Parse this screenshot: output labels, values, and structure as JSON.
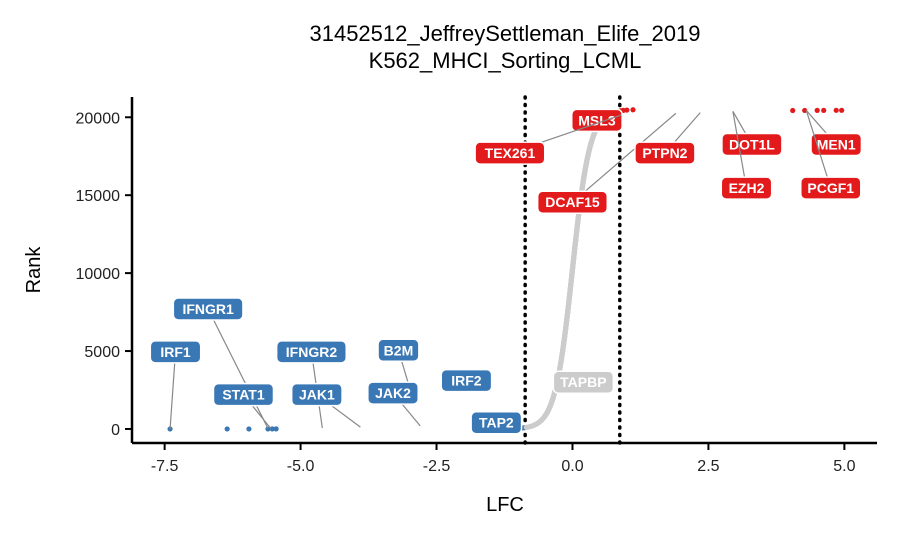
{
  "chart_data": {
    "type": "scatter",
    "title": "31452512_JeffreySettleman_Elife_2019",
    "subtitle": "K562_MHCI_Sorting_LCML",
    "xlabel": "LFC",
    "ylabel": "Rank",
    "xlim": [
      -8.1,
      5.6
    ],
    "ylim": [
      -900,
      21300
    ],
    "xticks": [
      -7.5,
      -5.0,
      -2.5,
      0.0,
      2.5,
      5.0
    ],
    "xtick_labels": [
      "-7.5",
      "-5.0",
      "-2.5",
      "0.0",
      "2.5",
      "5.0"
    ],
    "yticks": [
      0,
      5000,
      10000,
      15000,
      20000
    ],
    "ytick_labels": [
      "0",
      "5000",
      "10000",
      "15000",
      "20000"
    ],
    "thresholds": [
      -0.87,
      0.87
    ],
    "grid": false,
    "legend": "none",
    "colors": {
      "down": "#3a78b5",
      "up": "#e31a1c",
      "neutral": "#cccccc"
    },
    "n_genes": 20500,
    "sigmoid": {
      "center": 0,
      "scale": 0.16
    },
    "outliers_low": [
      {
        "x": -7.4,
        "y": 0
      },
      {
        "x": -6.35,
        "y": 1
      },
      {
        "x": -5.95,
        "y": 2
      },
      {
        "x": -5.6,
        "y": 3
      },
      {
        "x": -5.52,
        "y": 4
      },
      {
        "x": -5.45,
        "y": 5
      }
    ],
    "outliers_high": [
      {
        "x": 4.5,
        "y": 20440
      },
      {
        "x": 4.62,
        "y": 20442
      },
      {
        "x": 4.85,
        "y": 20445
      },
      {
        "x": 4.95,
        "y": 20447
      },
      {
        "x": 4.27,
        "y": 20437
      },
      {
        "x": 4.05,
        "y": 20434
      }
    ],
    "labels": [
      {
        "text": "IRF1",
        "group": "down",
        "point": [
          -7.4,
          0
        ],
        "pos": [
          -7.3,
          4950
        ]
      },
      {
        "text": "IFNGR1",
        "group": "down",
        "point": [
          -5.6,
          30
        ],
        "pos": [
          -6.7,
          7700
        ]
      },
      {
        "text": "STAT1",
        "group": "down",
        "point": [
          -5.55,
          35
        ],
        "pos": [
          -6.05,
          2200
        ]
      },
      {
        "text": "IFNGR2",
        "group": "down",
        "point": [
          -4.6,
          60
        ],
        "pos": [
          -4.8,
          4950
        ]
      },
      {
        "text": "JAK1",
        "group": "down",
        "point": [
          -3.9,
          120
        ],
        "pos": [
          -4.7,
          2200
        ]
      },
      {
        "text": "B2M",
        "group": "down",
        "point": [
          -3.0,
          2700
        ],
        "pos": [
          -3.2,
          5050
        ]
      },
      {
        "text": "JAK2",
        "group": "down",
        "point": [
          -2.8,
          200
        ],
        "pos": [
          -3.3,
          2300
        ]
      },
      {
        "text": "IRF2",
        "group": "down",
        "point": [
          -2.0,
          3100
        ],
        "pos": [
          -1.95,
          3100
        ]
      },
      {
        "text": "TAP2",
        "group": "down",
        "point": [
          -1.0,
          500
        ],
        "pos": [
          -1.4,
          400
        ]
      },
      {
        "text": "TAPBP",
        "group": "neutral",
        "point": [
          0.2,
          3000
        ],
        "pos": [
          0.2,
          3000
        ]
      },
      {
        "text": "MSL3",
        "group": "up",
        "point": [
          0.9,
          20200
        ],
        "pos": [
          0.45,
          19800
        ]
      },
      {
        "text": "TEX261",
        "group": "up",
        "point": [
          0.9,
          20150
        ],
        "pos": [
          -1.15,
          17700
        ]
      },
      {
        "text": "DCAF15",
        "group": "up",
        "point": [
          1.9,
          20250
        ],
        "pos": [
          0.0,
          14550
        ]
      },
      {
        "text": "PTPN2",
        "group": "up",
        "point": [
          2.35,
          20300
        ],
        "pos": [
          1.7,
          17700
        ]
      },
      {
        "text": "DOT1L",
        "group": "up",
        "point": [
          2.95,
          20380
        ],
        "pos": [
          3.3,
          18250
        ]
      },
      {
        "text": "EZH2",
        "group": "up",
        "point": [
          2.95,
          20380
        ],
        "pos": [
          3.2,
          15450
        ]
      },
      {
        "text": "MEN1",
        "group": "up",
        "point": [
          4.3,
          20438
        ],
        "pos": [
          4.85,
          18250
        ]
      },
      {
        "text": "PCGF1",
        "group": "up",
        "point": [
          4.3,
          20438
        ],
        "pos": [
          4.75,
          15450
        ]
      }
    ]
  }
}
